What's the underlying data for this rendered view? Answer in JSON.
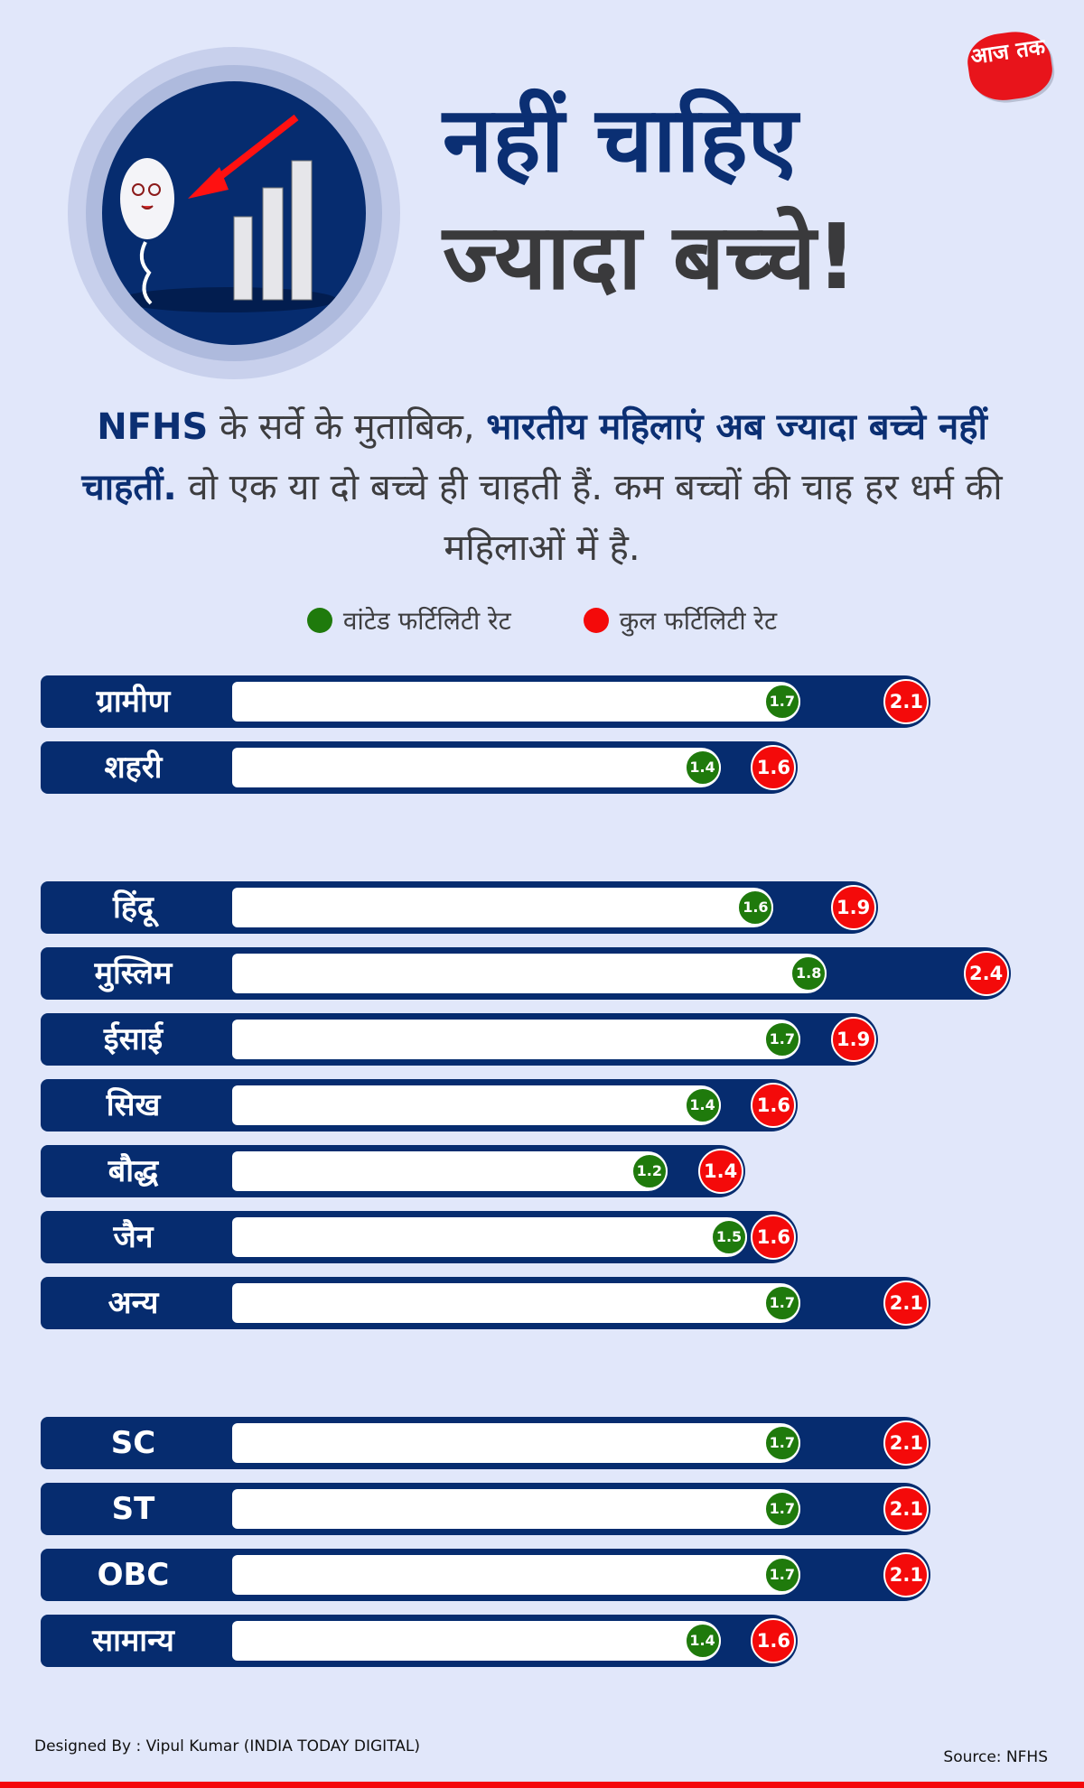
{
  "header": {
    "title_line1": "नहीं चाहिए",
    "title_line2": "ज्यादा बच्चे!",
    "logo_text": "आज तक"
  },
  "intro": {
    "part1_bold": "NFHS",
    "part2": " के सर्वे के मुताबिक, ",
    "part3_bold": "भारतीय महिलाएं अब ज्यादा बच्चे नहीं चाहतीं.",
    "part4": " वो एक या दो बच्चे ही चाहती हैं. कम बच्चों की चाह हर धर्म की महिलाओं में है."
  },
  "legend": [
    {
      "label": "वांटेड फर्टिलिटी रेट",
      "color": "#1f7a0c"
    },
    {
      "label": "कुल फर्टिलिटी रेट",
      "color": "#f40a0a"
    }
  ],
  "chart_data": {
    "type": "bar",
    "series": [
      {
        "name": "वांटेड फर्टिलिटी रेट",
        "color": "#1f7a0c"
      },
      {
        "name": "कुल फर्टिलिटी रेट",
        "color": "#f40a0a"
      }
    ],
    "groups": [
      {
        "rows": [
          {
            "label": "ग्रामीण",
            "wanted": 1.7,
            "total": 2.1
          },
          {
            "label": "शहरी",
            "wanted": 1.4,
            "total": 1.6
          }
        ]
      },
      {
        "rows": [
          {
            "label": "हिंदू",
            "wanted": 1.6,
            "total": 1.9
          },
          {
            "label": "मुस्लिम",
            "wanted": 1.8,
            "total": 2.4
          },
          {
            "label": "ईसाई",
            "wanted": 1.7,
            "total": 1.9
          },
          {
            "label": "सिख",
            "wanted": 1.4,
            "total": 1.6
          },
          {
            "label": "बौद्ध",
            "wanted": 1.2,
            "total": 1.4
          },
          {
            "label": "जैन",
            "wanted": 1.5,
            "total": 1.6
          },
          {
            "label": "अन्य",
            "wanted": 1.7,
            "total": 2.1
          }
        ]
      },
      {
        "rows": [
          {
            "label": "SC",
            "wanted": 1.7,
            "total": 2.1
          },
          {
            "label": "ST",
            "wanted": 1.7,
            "total": 2.1
          },
          {
            "label": "OBC",
            "wanted": 1.7,
            "total": 2.1
          },
          {
            "label": "सामान्य",
            "wanted": 1.4,
            "total": 1.6
          }
        ]
      }
    ]
  },
  "footer": {
    "credit": "Designed By : Vipul Kumar (INDIA TODAY DIGITAL)",
    "source": "Source: NFHS"
  }
}
